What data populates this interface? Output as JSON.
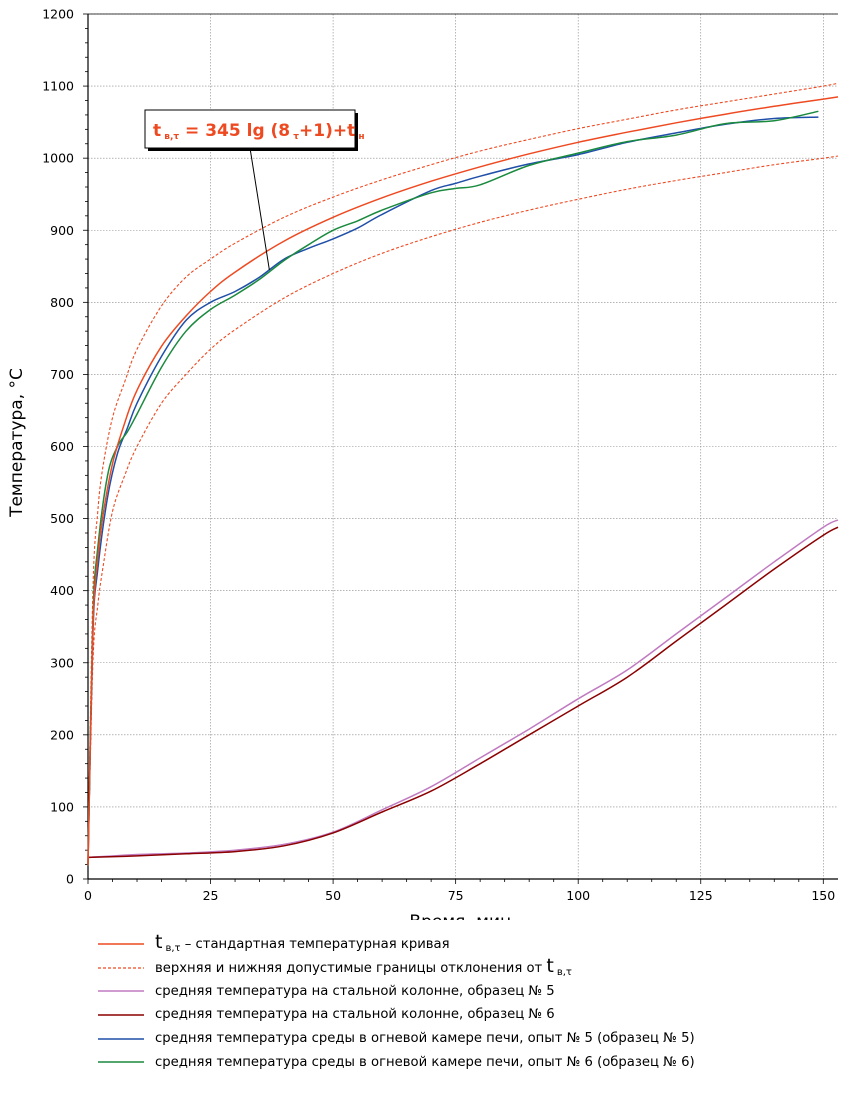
{
  "chart_data": {
    "type": "line",
    "xlabel": "Время, мин.",
    "ylabel": "Температура, °С",
    "xlim": [
      0,
      153
    ],
    "ylim": [
      0,
      1200
    ],
    "xticks": [
      0,
      25,
      50,
      75,
      100,
      125,
      150
    ],
    "yticks": [
      0,
      100,
      200,
      300,
      400,
      500,
      600,
      700,
      800,
      900,
      1000,
      1100,
      1200
    ],
    "grid": true,
    "annotation": {
      "formula": "t в,τ = 345 lg (8τ+1)+tн",
      "main": "t",
      "sub1": "в,τ",
      "mid": " = 345 lg (8",
      "sub2": "τ",
      "mid2": "+1)+t",
      "sub3": "н",
      "points_to": [
        37,
        845
      ]
    },
    "series": [
      {
        "name": "стандартная температурная кривая",
        "color": "#ee4a22",
        "style": "solid",
        "x": [
          0,
          1,
          2,
          3,
          5,
          7.5,
          10,
          15,
          20,
          25,
          30,
          40,
          50,
          60,
          70,
          80,
          90,
          100,
          110,
          120,
          130,
          140,
          150,
          153
        ],
        "y": [
          20,
          349,
          445,
          502,
          576,
          633,
          678,
          739,
          781,
          815,
          842,
          885,
          918,
          945,
          968,
          988,
          1006,
          1022,
          1036,
          1049,
          1061,
          1072,
          1082,
          1085
        ]
      },
      {
        "name": "верхняя допустимая граница",
        "color": "#ee4a22",
        "style": "dashed",
        "x": [
          0,
          1,
          2,
          3,
          5,
          7.5,
          10,
          15,
          20,
          25,
          30,
          40,
          50,
          60,
          70,
          80,
          90,
          100,
          110,
          120,
          130,
          140,
          150,
          153
        ],
        "y": [
          21,
          400,
          510,
          570,
          640,
          690,
          735,
          795,
          835,
          860,
          882,
          918,
          946,
          970,
          991,
          1010,
          1026,
          1041,
          1054,
          1067,
          1078,
          1089,
          1100,
          1104
        ]
      },
      {
        "name": "нижняя допустимая граница",
        "color": "#ee4a22",
        "style": "dashed",
        "x": [
          0,
          1,
          2,
          3,
          5,
          7.5,
          10,
          15,
          20,
          25,
          30,
          40,
          50,
          60,
          70,
          80,
          90,
          100,
          110,
          120,
          130,
          140,
          150,
          153
        ],
        "y": [
          19,
          300,
          380,
          430,
          510,
          560,
          600,
          660,
          700,
          735,
          762,
          806,
          840,
          868,
          891,
          911,
          928,
          943,
          957,
          969,
          980,
          991,
          1000,
          1003
        ]
      },
      {
        "name": "средняя температура на стальной колонне, образец № 5",
        "color": "#c07ac0",
        "style": "solid",
        "x": [
          0,
          10,
          20,
          30,
          40,
          50,
          60,
          70,
          80,
          90,
          100,
          110,
          120,
          130,
          140,
          150,
          153
        ],
        "y": [
          30,
          34,
          36,
          40,
          48,
          65,
          96,
          128,
          168,
          208,
          250,
          290,
          340,
          390,
          440,
          488,
          498
        ]
      },
      {
        "name": "средняя температура на стальной колонне, образец № 6",
        "color": "#8b0000",
        "style": "solid",
        "x": [
          0,
          10,
          20,
          30,
          40,
          50,
          60,
          70,
          80,
          90,
          100,
          110,
          120,
          130,
          140,
          150,
          153
        ],
        "y": [
          30,
          32,
          35,
          38,
          46,
          64,
          93,
          122,
          160,
          200,
          240,
          280,
          330,
          380,
          430,
          477,
          488
        ]
      },
      {
        "name": "средняя температура среды в огневой камере печи, опыт № 5 (образец № 5)",
        "color": "#1f4fa8",
        "style": "solid",
        "x": [
          0,
          1,
          2,
          4,
          6,
          8,
          10,
          15,
          20,
          25,
          30,
          35,
          40,
          45,
          50,
          55,
          60,
          70,
          75,
          80,
          90,
          100,
          110,
          120,
          130,
          140,
          149
        ],
        "y": [
          20,
          340,
          430,
          530,
          590,
          625,
          660,
          725,
          775,
          800,
          815,
          835,
          860,
          875,
          888,
          903,
          922,
          955,
          965,
          975,
          992,
          1005,
          1022,
          1035,
          1047,
          1055,
          1057
        ]
      },
      {
        "name": "средняя температура среды в огневой камере печи, опыт № 6 (образец № 6)",
        "color": "#1a8a3e",
        "style": "solid",
        "x": [
          0,
          1,
          2,
          4,
          6,
          8,
          10,
          15,
          20,
          25,
          30,
          35,
          40,
          45,
          50,
          55,
          60,
          70,
          75,
          80,
          90,
          100,
          110,
          120,
          130,
          140,
          149
        ],
        "y": [
          20,
          360,
          460,
          560,
          600,
          620,
          645,
          710,
          760,
          790,
          810,
          832,
          858,
          880,
          900,
          913,
          928,
          952,
          958,
          963,
          990,
          1007,
          1023,
          1032,
          1048,
          1052,
          1065
        ]
      }
    ],
    "legend": [
      {
        "kind": "formula",
        "color": "#ee4a22",
        "style": "solid",
        "sym": "t",
        "sub": "в,τ",
        "text": " – стандартная температурная кривая"
      },
      {
        "kind": "formula",
        "color": "#ee4a22",
        "style": "dashed",
        "text": "верхняя и нижняя допустимые границы отклонения от ",
        "sym": "t",
        "sub": "в,τ"
      },
      {
        "kind": "plain",
        "color": "#c07ac0",
        "style": "solid",
        "text": "средняя температура на стальной колонне, образец № 5"
      },
      {
        "kind": "plain",
        "color": "#8b0000",
        "style": "solid",
        "text": "средняя температура на стальной колонне, образец № 6"
      },
      {
        "kind": "plain",
        "color": "#1f4fa8",
        "style": "solid",
        "text": "средняя температура среды в огневой камере печи, опыт № 5 (образец № 5)"
      },
      {
        "kind": "plain",
        "color": "#1a8a3e",
        "style": "solid",
        "text": "средняя температура среды в огневой камере печи, опыт № 6 (образец № 6)"
      }
    ]
  }
}
